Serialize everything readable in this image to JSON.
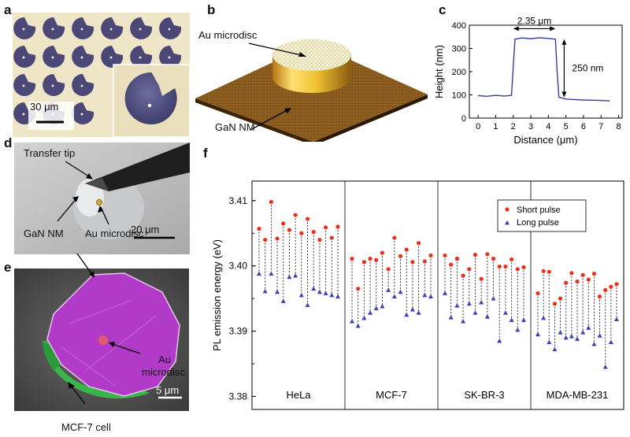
{
  "figure": {
    "panels": {
      "a": {
        "letter": "a",
        "scalebar": "30 μm"
      },
      "b": {
        "letter": "b",
        "label_disc": "Au microdisc",
        "label_nm": "GaN NM"
      },
      "c": {
        "letter": "c"
      },
      "d": {
        "letter": "d",
        "label_tip": "Transfer tip",
        "label_nm": "GaN NM",
        "label_disc": "Au microdisc",
        "scalebar": "20 μm"
      },
      "e": {
        "letter": "e",
        "label_disc_1": "Au",
        "label_disc_2": "microdisc",
        "scalebar": "5 μm",
        "label_cell": "MCF-7 cell"
      },
      "f": {
        "letter": "f"
      }
    }
  },
  "chart_data": [
    {
      "panel": "c",
      "type": "line",
      "xlabel": "Distance (μm)",
      "ylabel": "Height (nm)",
      "xlim": [
        -0.5,
        8.2
      ],
      "ylim": [
        0,
        400
      ],
      "xticks": [
        "0",
        "1",
        "2",
        "3",
        "4",
        "5",
        "6",
        "7",
        "8"
      ],
      "yticks": [
        "0",
        "100",
        "200",
        "300",
        "400"
      ],
      "annotations": [
        "2.35 μm",
        "250 nm"
      ],
      "series": [
        {
          "color": "#3b3d9a",
          "x": [
            0,
            0.5,
            1.0,
            1.5,
            1.9,
            2.0,
            2.1,
            2.5,
            3.0,
            3.5,
            4.0,
            4.4,
            4.5,
            4.6,
            5.0,
            5.5,
            6.0,
            6.5,
            7.0,
            7.5
          ],
          "y": [
            97,
            94,
            98,
            95,
            98,
            220,
            340,
            345,
            342,
            346,
            343,
            340,
            200,
            90,
            82,
            80,
            78,
            77,
            76,
            74
          ]
        }
      ]
    },
    {
      "panel": "f",
      "type": "scatter",
      "ylabel": "PL emission energy (eV)",
      "ylim": [
        3.378,
        3.413
      ],
      "yticks": [
        "3.38",
        "3.39",
        "3.40",
        "3.41"
      ],
      "grid": false,
      "legend_position": "top-right",
      "groups": [
        "HeLa",
        "MCF-7",
        "SK-BR-3",
        "MDA-MB-231"
      ],
      "series": [
        {
          "name": "Short pulse",
          "color": "#e8321e",
          "values": [
            [
              3.4057,
              3.404,
              3.4098,
              3.4042,
              3.4065,
              3.4055,
              3.4078,
              3.405,
              3.4072,
              3.4052,
              3.404,
              3.4059,
              3.4043,
              3.406
            ],
            [
              3.4011,
              3.3965,
              3.4006,
              3.4011,
              3.4009,
              3.402,
              3.3995,
              3.4043,
              3.4015,
              3.4025,
              3.4006,
              3.4035,
              3.4007,
              3.4016
            ],
            [
              3.4016,
              3.4002,
              3.4011,
              3.3985,
              3.3995,
              3.4017,
              3.398,
              3.4018,
              3.4011,
              3.3999,
              3.3999,
              3.401,
              3.3995,
              3.3998
            ],
            [
              3.3958,
              3.3992,
              3.3991,
              3.3942,
              3.395,
              3.3974,
              3.3989,
              3.3976,
              3.3986,
              3.3979,
              3.3988,
              3.3953,
              3.3963,
              3.3968,
              3.3972
            ]
          ]
        },
        {
          "name": "Long pulse",
          "color": "#4040b8",
          "values": [
            [
              3.3988,
              3.3961,
              3.3988,
              3.396,
              3.3946,
              3.3983,
              3.3985,
              3.3955,
              3.394,
              3.3965,
              3.396,
              3.3958,
              3.3955,
              3.3953
            ],
            [
              3.3915,
              3.3908,
              3.392,
              3.3928,
              3.3935,
              3.3938,
              3.3963,
              3.3953,
              3.396,
              3.3925,
              3.3933,
              3.3928,
              3.3955,
              3.3953
            ],
            [
              3.3958,
              3.3921,
              3.3939,
              3.3915,
              3.3942,
              3.3928,
              3.3944,
              3.3922,
              3.395,
              3.3885,
              3.3928,
              3.3917,
              3.3902,
              3.3917
            ],
            [
              3.3895,
              3.392,
              3.3883,
              3.3872,
              3.3898,
              3.389,
              3.3892,
              3.3888,
              3.3898,
              3.3905,
              3.388,
              3.3893,
              3.3845,
              3.3883,
              3.3918
            ]
          ]
        }
      ]
    }
  ]
}
